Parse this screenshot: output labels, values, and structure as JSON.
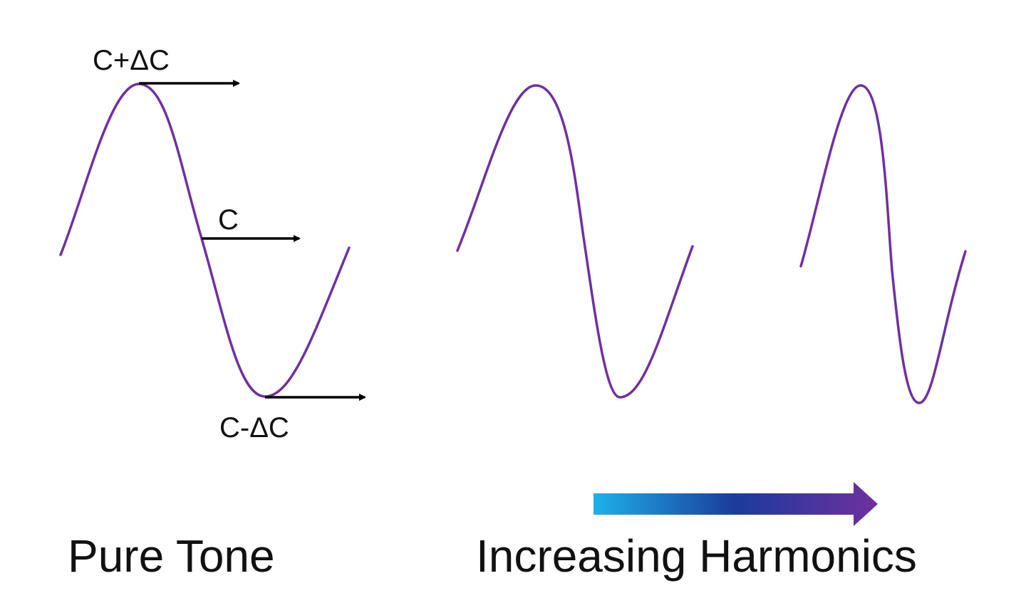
{
  "colors": {
    "wave": "#7030A0",
    "arrow": "#000000",
    "gradient_start": "#1EB1EA",
    "gradient_mid": "#1B3B9B",
    "gradient_end": "#7030A0",
    "text": "#111111"
  },
  "pure_tone": {
    "label_high": "C+ΔC",
    "label_mid": "C",
    "label_low": "C-ΔC",
    "caption": "Pure Tone"
  },
  "harmonics": {
    "caption": "Increasing Harmonics"
  },
  "waves": [
    {
      "name": "pure-tone",
      "harmonic_level": 0
    },
    {
      "name": "medium-harmonics",
      "harmonic_level": 1
    },
    {
      "name": "high-harmonics",
      "harmonic_level": 2
    }
  ]
}
